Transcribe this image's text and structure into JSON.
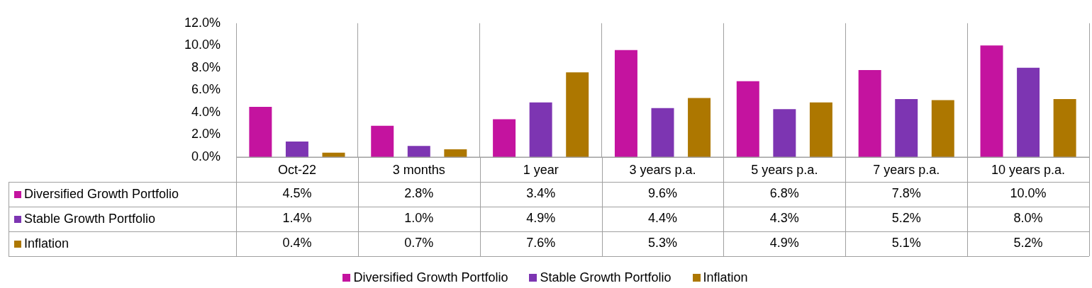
{
  "chart_data": {
    "type": "bar",
    "categories": [
      "Oct-22",
      "3 months",
      "1 year",
      "3 years p.a.",
      "5 years p.a.",
      "7 years p.a.",
      "10 years p.a."
    ],
    "series": [
      {
        "name": "Diversified Growth Portfolio",
        "color": "#c4139f",
        "values": [
          4.5,
          2.8,
          3.4,
          9.6,
          6.8,
          7.8,
          10.0
        ],
        "value_labels": [
          "4.5%",
          "2.8%",
          "3.4%",
          "9.6%",
          "6.8%",
          "7.8%",
          "10.0%"
        ]
      },
      {
        "name": "Stable Growth Portfolio",
        "color": "#7d35b2",
        "values": [
          1.4,
          1.0,
          4.9,
          4.4,
          4.3,
          5.2,
          8.0
        ],
        "value_labels": [
          "1.4%",
          "1.0%",
          "4.9%",
          "4.4%",
          "4.3%",
          "5.2%",
          "8.0%"
        ]
      },
      {
        "name": "Inflation",
        "color": "#ad7700",
        "values": [
          0.4,
          0.7,
          7.6,
          5.3,
          4.9,
          5.1,
          5.2
        ],
        "value_labels": [
          "0.4%",
          "0.7%",
          "7.6%",
          "5.3%",
          "4.9%",
          "5.1%",
          "5.2%"
        ]
      }
    ],
    "ylim": [
      0,
      12
    ],
    "yticks": [
      {
        "value": 0,
        "label": "0.0%"
      },
      {
        "value": 2,
        "label": "2.0%"
      },
      {
        "value": 4,
        "label": "4.0%"
      },
      {
        "value": 6,
        "label": "6.0%"
      },
      {
        "value": 8,
        "label": "8.0%"
      },
      {
        "value": 10,
        "label": "10.0%"
      },
      {
        "value": 12,
        "label": "12.0%"
      }
    ],
    "grid": "x",
    "legend": "bottom"
  }
}
